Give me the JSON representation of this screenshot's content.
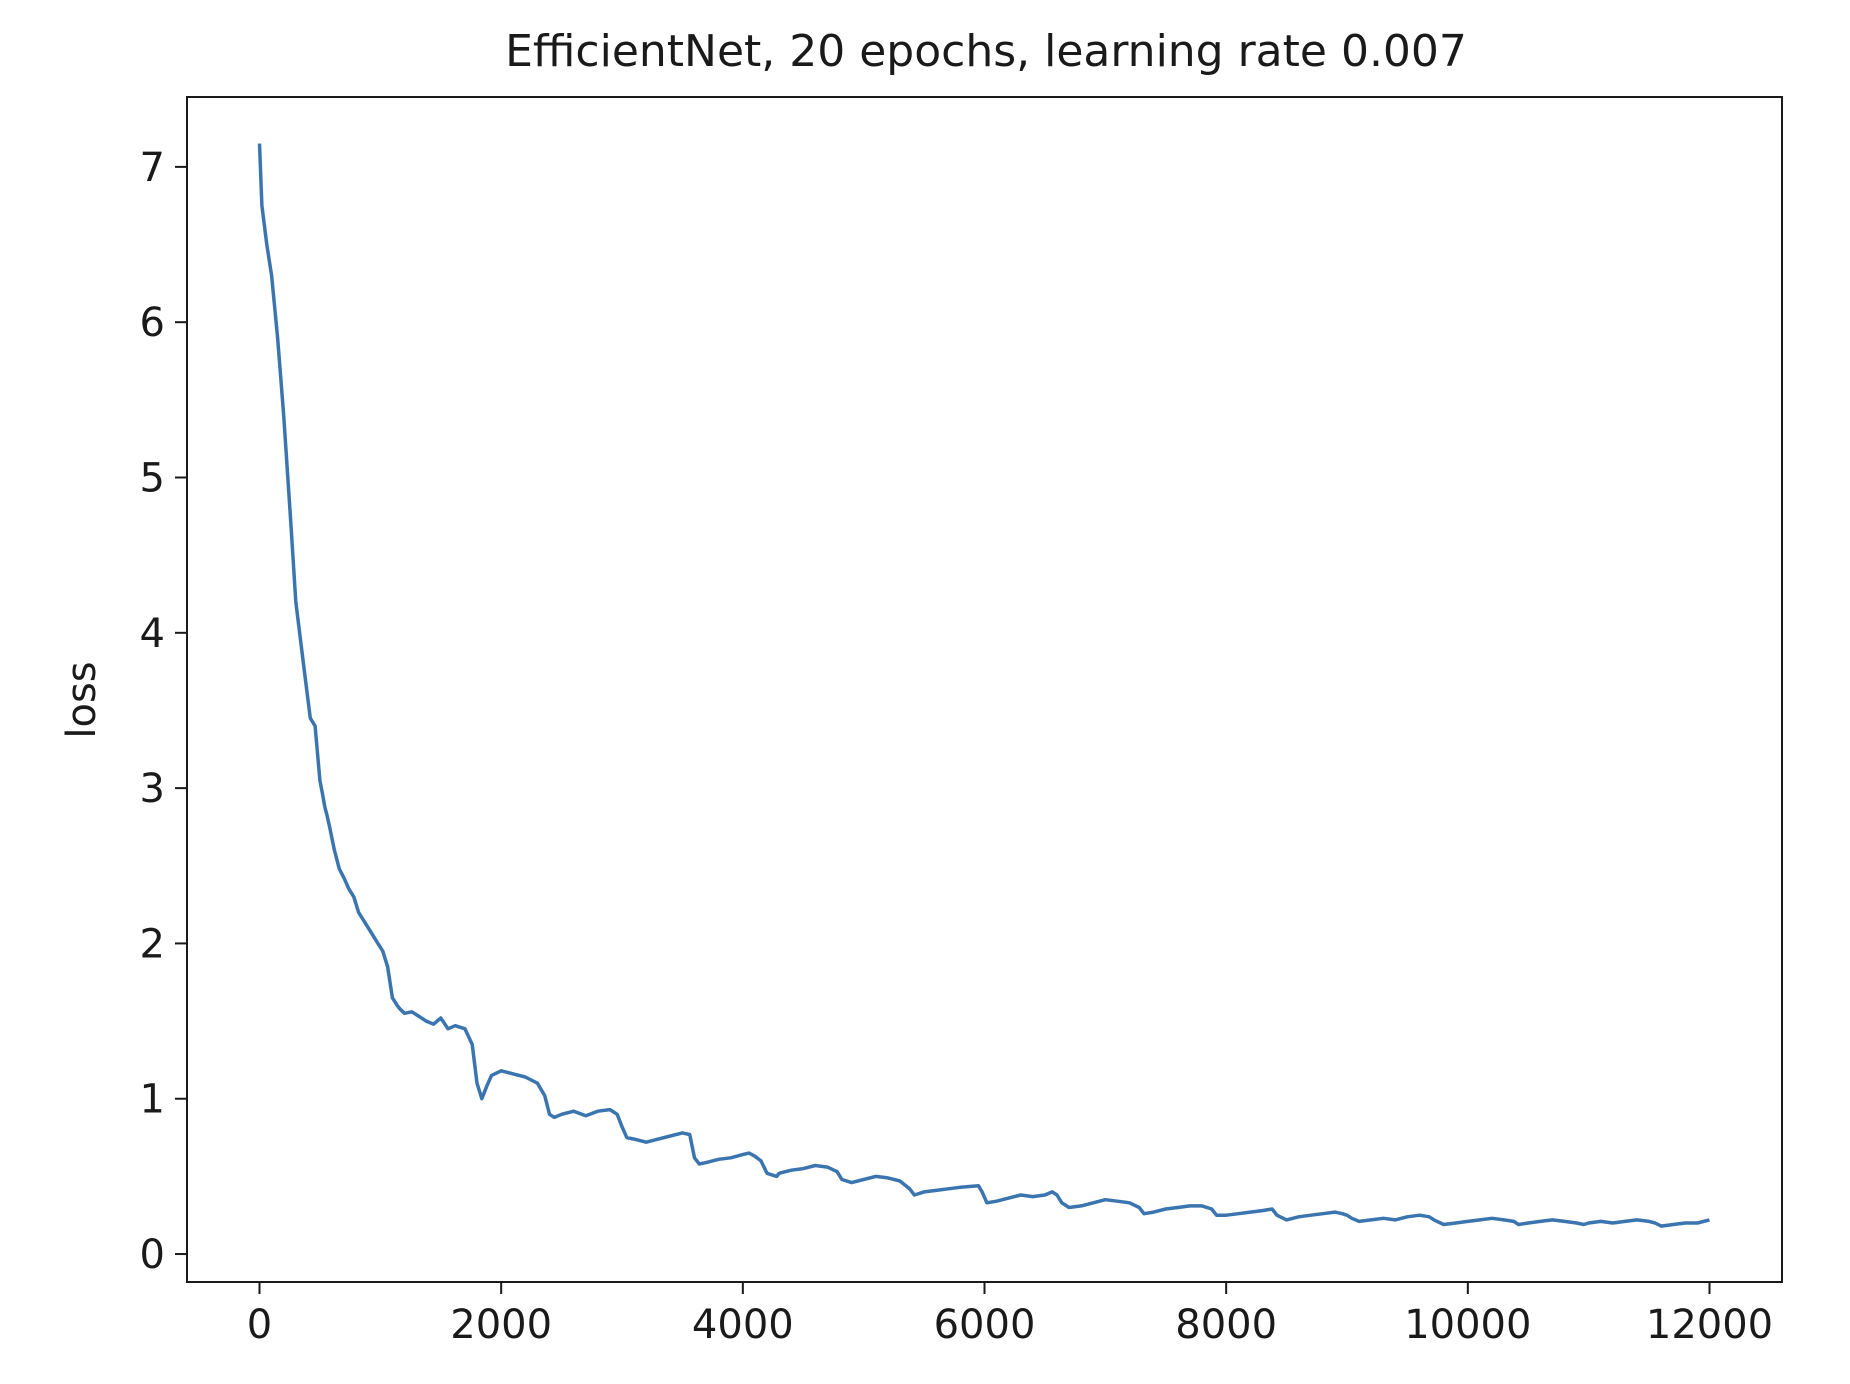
{
  "chart_data": {
    "type": "line",
    "title": "EfficientNet, 20 epochs, learning rate 0.007",
    "xlabel": "",
    "ylabel": "loss",
    "xlim": [
      -600,
      12600
    ],
    "ylim": [
      -0.18,
      7.45
    ],
    "xticks": [
      0,
      2000,
      4000,
      6000,
      8000,
      10000,
      12000
    ],
    "xtick_labels": [
      "0",
      "2000",
      "4000",
      "6000",
      "8000",
      "10000",
      "12000"
    ],
    "yticks": [
      0,
      1,
      2,
      3,
      4,
      5,
      6,
      7
    ],
    "ytick_labels": [
      "0",
      "1",
      "2",
      "3",
      "4",
      "5",
      "6",
      "7"
    ],
    "grid": false,
    "legend": "none",
    "series": [
      {
        "color": "#3b75af",
        "x": [
          0,
          20,
          60,
          100,
          150,
          200,
          260,
          300,
          340,
          380,
          420,
          460,
          500,
          520,
          540,
          560,
          580,
          620,
          660,
          700,
          740,
          780,
          820,
          860,
          900,
          940,
          980,
          1020,
          1060,
          1100,
          1140,
          1160,
          1200,
          1260,
          1320,
          1380,
          1440,
          1500,
          1560,
          1620,
          1700,
          1760,
          1800,
          1840,
          1880,
          1920,
          2000,
          2100,
          2200,
          2300,
          2360,
          2400,
          2440,
          2500,
          2600,
          2700,
          2800,
          2900,
          2960,
          3000,
          3040,
          3100,
          3200,
          3300,
          3400,
          3500,
          3560,
          3600,
          3640,
          3700,
          3800,
          3900,
          4000,
          4050,
          4100,
          4150,
          4200,
          4280,
          4300,
          4400,
          4500,
          4600,
          4700,
          4780,
          4820,
          4900,
          5000,
          5100,
          5200,
          5300,
          5380,
          5420,
          5500,
          5600,
          5700,
          5800,
          5950,
          5980,
          6020,
          6100,
          6200,
          6300,
          6400,
          6500,
          6560,
          6600,
          6640,
          6700,
          6800,
          6900,
          7000,
          7100,
          7200,
          7280,
          7320,
          7400,
          7500,
          7600,
          7700,
          7800,
          7880,
          7920,
          8000,
          8100,
          8200,
          8300,
          8380,
          8420,
          8500,
          8600,
          8700,
          8800,
          8900,
          8960,
          9000,
          9040,
          9100,
          9200,
          9300,
          9400,
          9500,
          9600,
          9680,
          9720,
          9800,
          9900,
          10000,
          10100,
          10200,
          10300,
          10380,
          10420,
          10500,
          10600,
          10700,
          10800,
          10900,
          10960,
          11000,
          11100,
          11200,
          11300,
          11400,
          11500,
          11550,
          11600,
          11700,
          11800,
          11900,
          12000
        ],
        "y": [
          7.15,
          6.75,
          6.5,
          6.3,
          5.9,
          5.4,
          4.7,
          4.2,
          3.95,
          3.7,
          3.45,
          3.4,
          3.05,
          2.97,
          2.88,
          2.82,
          2.75,
          2.6,
          2.48,
          2.42,
          2.35,
          2.3,
          2.2,
          2.15,
          2.1,
          2.05,
          2.0,
          1.95,
          1.85,
          1.65,
          1.6,
          1.58,
          1.55,
          1.56,
          1.53,
          1.5,
          1.48,
          1.52,
          1.45,
          1.47,
          1.45,
          1.35,
          1.1,
          1.0,
          1.08,
          1.15,
          1.18,
          1.16,
          1.14,
          1.1,
          1.02,
          0.9,
          0.88,
          0.9,
          0.92,
          0.89,
          0.92,
          0.93,
          0.9,
          0.82,
          0.75,
          0.74,
          0.72,
          0.74,
          0.76,
          0.78,
          0.77,
          0.62,
          0.58,
          0.59,
          0.61,
          0.62,
          0.64,
          0.65,
          0.63,
          0.6,
          0.52,
          0.5,
          0.52,
          0.54,
          0.55,
          0.57,
          0.56,
          0.53,
          0.48,
          0.46,
          0.48,
          0.5,
          0.49,
          0.47,
          0.42,
          0.38,
          0.4,
          0.41,
          0.42,
          0.43,
          0.44,
          0.4,
          0.33,
          0.34,
          0.36,
          0.38,
          0.37,
          0.38,
          0.4,
          0.38,
          0.33,
          0.3,
          0.31,
          0.33,
          0.35,
          0.34,
          0.33,
          0.3,
          0.26,
          0.27,
          0.29,
          0.3,
          0.31,
          0.31,
          0.29,
          0.25,
          0.25,
          0.26,
          0.27,
          0.28,
          0.29,
          0.25,
          0.22,
          0.24,
          0.25,
          0.26,
          0.27,
          0.26,
          0.25,
          0.23,
          0.21,
          0.22,
          0.23,
          0.22,
          0.24,
          0.25,
          0.24,
          0.22,
          0.19,
          0.2,
          0.21,
          0.22,
          0.23,
          0.22,
          0.21,
          0.19,
          0.2,
          0.21,
          0.22,
          0.21,
          0.2,
          0.19,
          0.2,
          0.21,
          0.2,
          0.21,
          0.22,
          0.21,
          0.2,
          0.18,
          0.19,
          0.2,
          0.2,
          0.22
        ]
      }
    ]
  }
}
